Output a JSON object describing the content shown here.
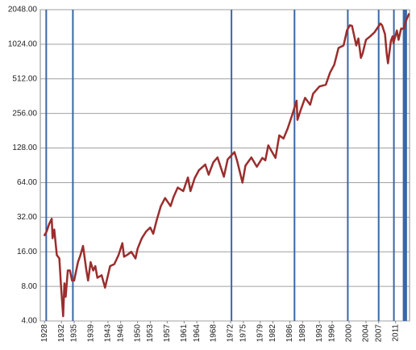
{
  "chart_data": {
    "type": "line",
    "log_scale": true,
    "grid": true,
    "color": "#9b2d2d",
    "signal_color": "#3a66a6",
    "xlim": [
      1927,
      2014.3
    ],
    "xticks": [
      1928,
      1932,
      1935,
      1939,
      1943,
      1946,
      1950,
      1953,
      1957,
      1961,
      1964,
      1968,
      1972,
      1975,
      1979,
      1982,
      1986,
      1989,
      1993,
      1996,
      2000,
      2004,
      2007,
      2011
    ],
    "ylim": [
      4,
      2048
    ],
    "yticks": [
      {
        "value": 4,
        "label": "4.00"
      },
      {
        "value": 8,
        "label": "8.00"
      },
      {
        "value": 16,
        "label": "16.00"
      },
      {
        "value": 32,
        "label": "32.00"
      },
      {
        "value": 64,
        "label": "64.00"
      },
      {
        "value": 128,
        "label": "128.00"
      },
      {
        "value": 256,
        "label": "256.00"
      },
      {
        "value": 512,
        "label": "512.00"
      },
      {
        "value": 1024,
        "label": "1024.00"
      },
      {
        "value": 2048,
        "label": "2048.00"
      }
    ],
    "signal_lines": [
      1928.4,
      1934.7,
      1972.2,
      1987.1,
      1999.7,
      2007.0,
      2010.6
    ],
    "signal_band": [
      2012.7,
      2013.7
    ],
    "x": [
      1927.9,
      1928.5,
      1929.1,
      1929.7,
      1929.9,
      1930.3,
      1930.9,
      1931.5,
      1931.9,
      1932.4,
      1932.7,
      1933.0,
      1933.5,
      1934.0,
      1934.5,
      1935.0,
      1935.9,
      1936.5,
      1937.1,
      1937.9,
      1938.3,
      1938.9,
      1939.5,
      1940.0,
      1940.5,
      1941.5,
      1942.3,
      1943.0,
      1943.5,
      1944.5,
      1945.5,
      1946.4,
      1946.8,
      1947.5,
      1948.5,
      1949.5,
      1950.0,
      1951.0,
      1952.0,
      1953.0,
      1953.7,
      1954.5,
      1955.5,
      1956.5,
      1957.8,
      1958.5,
      1959.5,
      1960.8,
      1961.9,
      1962.5,
      1963.5,
      1964.5,
      1966.0,
      1966.8,
      1967.9,
      1968.9,
      1970.4,
      1971.3,
      1972.9,
      1973.5,
      1974.8,
      1975.5,
      1976.9,
      1978.2,
      1979.5,
      1980.2,
      1980.9,
      1982.6,
      1983.5,
      1984.5,
      1985.5,
      1986.5,
      1987.6,
      1987.8,
      1988.5,
      1989.6,
      1990.8,
      1991.5,
      1993.0,
      1994.5,
      1995.5,
      1996.5,
      1997.5,
      1998.7,
      1999.5,
      2000.2,
      2000.7,
      2001.7,
      2002.2,
      2002.8,
      2003.2,
      2004.0,
      2005.0,
      2006.0,
      2007.4,
      2007.8,
      2008.5,
      2008.9,
      2009.2,
      2009.9,
      2010.3,
      2010.5,
      2011.3,
      2011.7,
      2012.3,
      2012.9,
      2013.5,
      2014.2
    ],
    "values": [
      22,
      24,
      28,
      31,
      21,
      25,
      15,
      14,
      8,
      4.4,
      8.5,
      6.5,
      11,
      11,
      9,
      9,
      13,
      15,
      18,
      11,
      9,
      13,
      11,
      12,
      9.5,
      10,
      7.8,
      10,
      12,
      12.5,
      15,
      19,
      14.5,
      15,
      16,
      14,
      17,
      21,
      24,
      26,
      23,
      30,
      40,
      47,
      40,
      48,
      58,
      54,
      71,
      54,
      70,
      82,
      92,
      75,
      96,
      106,
      72,
      102,
      118,
      100,
      64,
      90,
      106,
      88,
      105,
      100,
      135,
      105,
      165,
      155,
      190,
      245,
      330,
      225,
      270,
      350,
      305,
      380,
      440,
      455,
      580,
      680,
      950,
      1000,
      1350,
      1500,
      1480,
      1000,
      1150,
      780,
      850,
      1120,
      1200,
      1300,
      1550,
      1500,
      1250,
      850,
      700,
      1100,
      1200,
      1050,
      1350,
      1120,
      1400,
      1400,
      1650,
      1900
    ]
  }
}
